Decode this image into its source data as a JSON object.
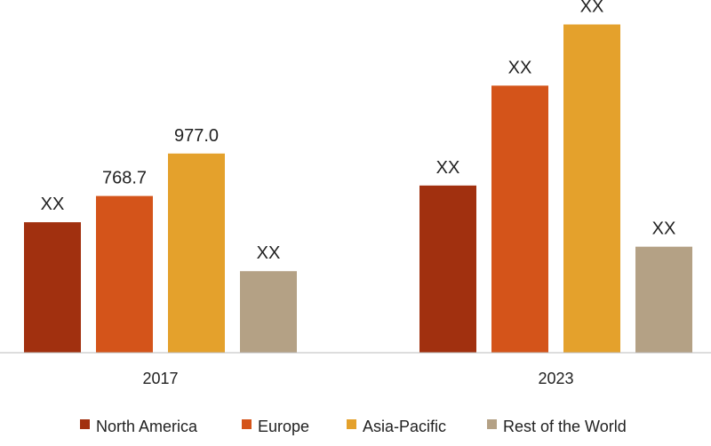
{
  "chart_data": {
    "type": "bar",
    "categories": [
      "2017",
      "2023"
    ],
    "series": [
      {
        "name": "North America",
        "color": "#a1300f",
        "values": [
          null,
          null
        ],
        "labels": [
          "XX",
          "XX"
        ]
      },
      {
        "name": "Europe",
        "color": "#d4541a",
        "values": [
          768.7,
          null
        ],
        "labels": [
          "768.7",
          "XX"
        ]
      },
      {
        "name": "Asia-Pacific",
        "color": "#e4a12c",
        "values": [
          977.0,
          null
        ],
        "labels": [
          "977.0",
          "XX"
        ]
      },
      {
        "name": "Rest of the World",
        "color": "#b4a185",
        "values": [
          null,
          null
        ],
        "labels": [
          "XX",
          "XX"
        ]
      }
    ],
    "estimated_values": [
      [
        640,
        820
      ],
      null,
      null,
      [
        400,
        520
      ]
    ],
    "estimated_values_2023": [
      null,
      1310,
      1610,
      null
    ],
    "title": "",
    "xlabel": "",
    "ylabel": "",
    "ylim": [
      0,
      1730
    ],
    "grid": false,
    "legend_position": "bottom"
  }
}
